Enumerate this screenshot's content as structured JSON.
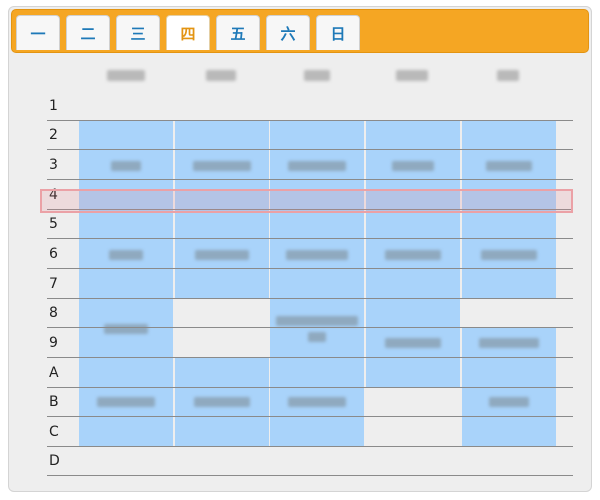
{
  "weekday_tabs": [
    {
      "label": "一",
      "active": false
    },
    {
      "label": "二",
      "active": false
    },
    {
      "label": "三",
      "active": false
    },
    {
      "label": "四",
      "active": true
    },
    {
      "label": "五",
      "active": false
    },
    {
      "label": "六",
      "active": false
    },
    {
      "label": "日",
      "active": false
    }
  ],
  "periods": [
    "1",
    "2",
    "3",
    "4",
    "5",
    "6",
    "7",
    "8",
    "9",
    "A",
    "B",
    "C",
    "D"
  ],
  "selected_period": "4",
  "colors": {
    "tab_bar": "#f5a623",
    "course_block": "#a9d3fa",
    "selection_outline": "#eba1a6",
    "active_tab_text": "#e39412",
    "tab_text": "#1e79b8"
  }
}
